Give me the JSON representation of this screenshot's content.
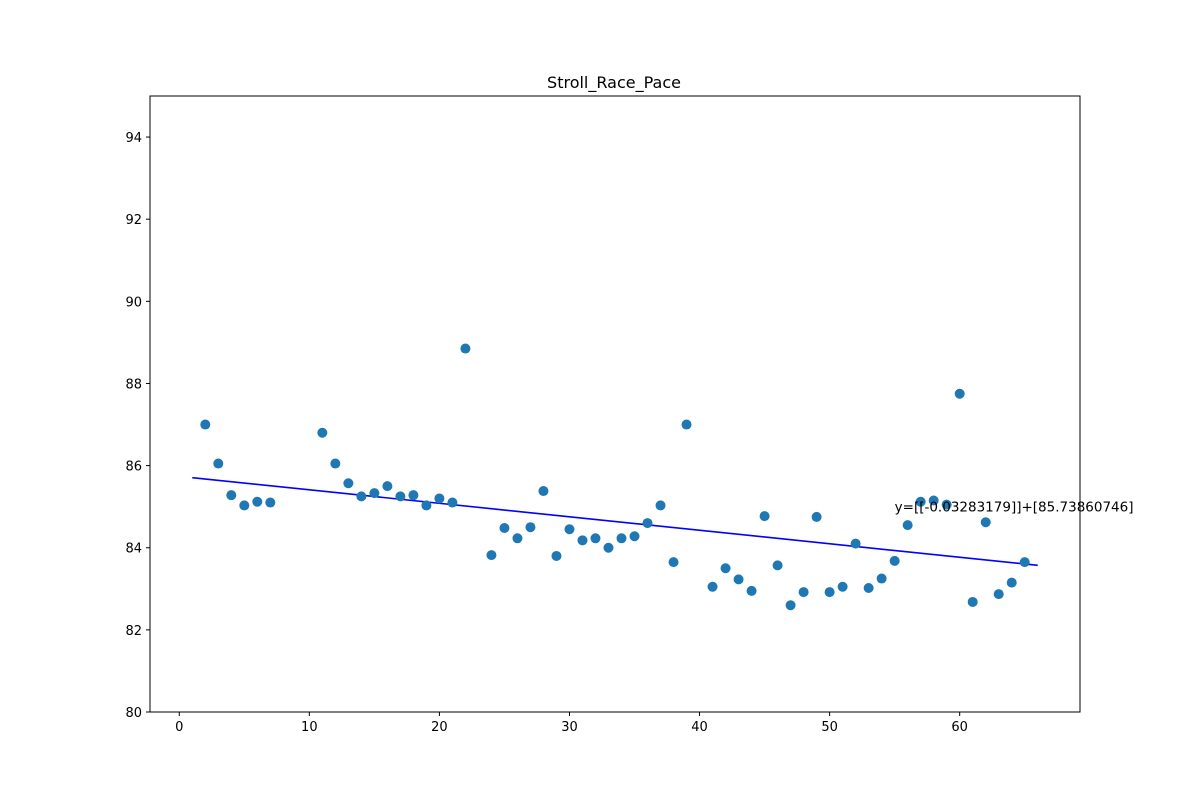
{
  "chart_data": {
    "type": "scatter",
    "title": "Stroll_Race_Pace",
    "xlabel": "",
    "ylabel": "",
    "xlim": [
      -2.25,
      69.25
    ],
    "ylim": [
      80,
      95
    ],
    "xticks": [
      0,
      10,
      20,
      30,
      40,
      50,
      60
    ],
    "yticks": [
      80,
      82,
      84,
      86,
      88,
      90,
      92,
      94
    ],
    "grid": false,
    "colors": {
      "points": "#1f77b4",
      "fit_line": "#0000ff",
      "axes": "#000000"
    },
    "points": [
      {
        "x": 2,
        "y": 87.0
      },
      {
        "x": 3,
        "y": 86.05
      },
      {
        "x": 4,
        "y": 85.28
      },
      {
        "x": 5,
        "y": 85.03
      },
      {
        "x": 6,
        "y": 85.12
      },
      {
        "x": 7,
        "y": 85.1
      },
      {
        "x": 11,
        "y": 86.8
      },
      {
        "x": 12,
        "y": 86.05
      },
      {
        "x": 13,
        "y": 85.57
      },
      {
        "x": 14,
        "y": 85.25
      },
      {
        "x": 15,
        "y": 85.33
      },
      {
        "x": 16,
        "y": 85.5
      },
      {
        "x": 17,
        "y": 85.25
      },
      {
        "x": 18,
        "y": 85.28
      },
      {
        "x": 19,
        "y": 85.03
      },
      {
        "x": 20,
        "y": 85.2
      },
      {
        "x": 21,
        "y": 85.1
      },
      {
        "x": 22,
        "y": 88.85
      },
      {
        "x": 24,
        "y": 83.82
      },
      {
        "x": 25,
        "y": 84.48
      },
      {
        "x": 26,
        "y": 84.23
      },
      {
        "x": 27,
        "y": 84.5
      },
      {
        "x": 28,
        "y": 85.38
      },
      {
        "x": 29,
        "y": 83.8
      },
      {
        "x": 30,
        "y": 84.45
      },
      {
        "x": 31,
        "y": 84.18
      },
      {
        "x": 32,
        "y": 84.23
      },
      {
        "x": 33,
        "y": 84.0
      },
      {
        "x": 34,
        "y": 84.23
      },
      {
        "x": 35,
        "y": 84.28
      },
      {
        "x": 36,
        "y": 84.6
      },
      {
        "x": 37,
        "y": 85.03
      },
      {
        "x": 38,
        "y": 83.65
      },
      {
        "x": 39,
        "y": 87.0
      },
      {
        "x": 41,
        "y": 83.05
      },
      {
        "x": 42,
        "y": 83.5
      },
      {
        "x": 43,
        "y": 83.23
      },
      {
        "x": 44,
        "y": 82.95
      },
      {
        "x": 45,
        "y": 84.77
      },
      {
        "x": 46,
        "y": 83.57
      },
      {
        "x": 47,
        "y": 82.6
      },
      {
        "x": 48,
        "y": 82.92
      },
      {
        "x": 49,
        "y": 84.75
      },
      {
        "x": 50,
        "y": 82.92
      },
      {
        "x": 51,
        "y": 83.05
      },
      {
        "x": 52,
        "y": 84.1
      },
      {
        "x": 53,
        "y": 83.02
      },
      {
        "x": 54,
        "y": 83.25
      },
      {
        "x": 55,
        "y": 83.68
      },
      {
        "x": 56,
        "y": 84.55
      },
      {
        "x": 57,
        "y": 85.12
      },
      {
        "x": 58,
        "y": 85.15
      },
      {
        "x": 59,
        "y": 85.05
      },
      {
        "x": 60,
        "y": 87.75
      },
      {
        "x": 61,
        "y": 82.68
      },
      {
        "x": 62,
        "y": 84.62
      },
      {
        "x": 63,
        "y": 82.87
      },
      {
        "x": 64,
        "y": 83.15
      },
      {
        "x": 65,
        "y": 83.65
      }
    ],
    "fit_line": {
      "slope": -0.03283179,
      "intercept": 85.73860746,
      "x_range": [
        1,
        66
      ]
    },
    "annotation": {
      "text": "y=[[-0.03283179]]+[85.73860746]",
      "x": 55,
      "y": 85.0
    }
  }
}
